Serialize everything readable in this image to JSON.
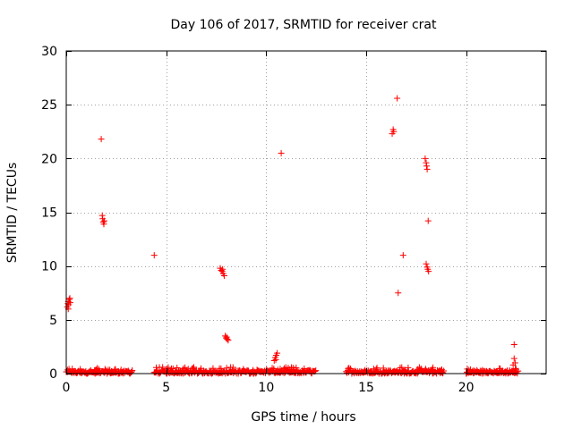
{
  "chart_data": {
    "type": "scatter",
    "title": "Day 106 of 2017, SRMTID for receiver crat",
    "xlabel": "GPS time / hours",
    "ylabel": "SRMTID / TECUs",
    "xlim": [
      0,
      24
    ],
    "ylim": [
      0,
      30
    ],
    "xticks": [
      "0",
      "5",
      "10",
      "15",
      "20"
    ],
    "yticks": [
      "0",
      "5",
      "10",
      "15",
      "20",
      "25",
      "30"
    ],
    "grid": true,
    "marker": "+",
    "color": "#ff0000",
    "series": [
      {
        "name": "SRMTID",
        "points": [
          [
            0.05,
            6.2
          ],
          [
            0.08,
            6.5
          ],
          [
            0.1,
            6.7
          ],
          [
            0.12,
            6.4
          ],
          [
            0.15,
            6.9
          ],
          [
            0.18,
            7.0
          ],
          [
            0.2,
            6.6
          ],
          [
            0.1,
            6.0
          ],
          [
            1.75,
            21.8
          ],
          [
            1.8,
            14.7
          ],
          [
            1.82,
            14.4
          ],
          [
            1.85,
            14.1
          ],
          [
            1.88,
            13.9
          ],
          [
            1.9,
            14.2
          ],
          [
            4.4,
            11.0
          ],
          [
            7.7,
            9.8
          ],
          [
            7.75,
            9.6
          ],
          [
            7.8,
            9.5
          ],
          [
            7.85,
            9.3
          ],
          [
            7.9,
            9.1
          ],
          [
            7.82,
            9.7
          ],
          [
            7.95,
            3.5
          ],
          [
            8.0,
            3.3
          ],
          [
            8.05,
            3.2
          ],
          [
            8.1,
            3.1
          ],
          [
            8.02,
            3.4
          ],
          [
            10.4,
            1.2
          ],
          [
            10.45,
            1.5
          ],
          [
            10.5,
            1.7
          ],
          [
            10.55,
            1.9
          ],
          [
            10.48,
            1.3
          ],
          [
            10.75,
            20.5
          ],
          [
            16.3,
            22.3
          ],
          [
            16.35,
            22.7
          ],
          [
            16.38,
            22.5
          ],
          [
            16.55,
            25.6
          ],
          [
            16.6,
            7.5
          ],
          [
            16.85,
            11.0
          ],
          [
            17.95,
            20.0
          ],
          [
            18.0,
            19.6
          ],
          [
            18.02,
            19.3
          ],
          [
            18.05,
            19.0
          ],
          [
            18.1,
            14.2
          ],
          [
            18.0,
            10.2
          ],
          [
            18.05,
            9.9
          ],
          [
            18.08,
            9.7
          ],
          [
            18.12,
            9.5
          ],
          [
            22.4,
            2.7
          ],
          [
            22.4,
            1.4
          ],
          [
            22.35,
            0.8
          ],
          [
            22.45,
            1.0
          ]
        ],
        "baseline_segments": [
          {
            "x_start": 0.0,
            "x_end": 3.3,
            "y_max": 0.5
          },
          {
            "x_start": 4.4,
            "x_end": 12.5,
            "y_max": 0.6
          },
          {
            "x_start": 14.0,
            "x_end": 18.9,
            "y_max": 0.6
          },
          {
            "x_start": 20.0,
            "x_end": 22.6,
            "y_max": 0.5
          }
        ]
      }
    ]
  }
}
